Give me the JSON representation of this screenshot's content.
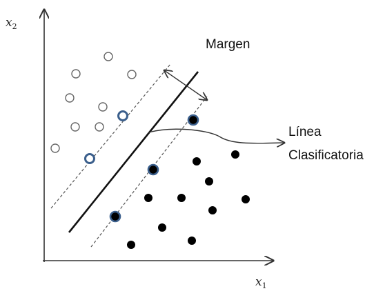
{
  "labels": {
    "x_axis_main": "x",
    "x_axis_sub": "1",
    "y_axis_main": "x",
    "y_axis_sub": "2",
    "margin": "Margen",
    "line_label_1": "Línea",
    "line_label_2": "Clasificatoria"
  },
  "colors": {
    "axis": "#333333",
    "hyperplane": "#111111",
    "margin_lines": "#555555",
    "open_point_stroke": "#666666",
    "support_vector_ring": "#3b5f8c",
    "filled_point": "#000000"
  }
}
